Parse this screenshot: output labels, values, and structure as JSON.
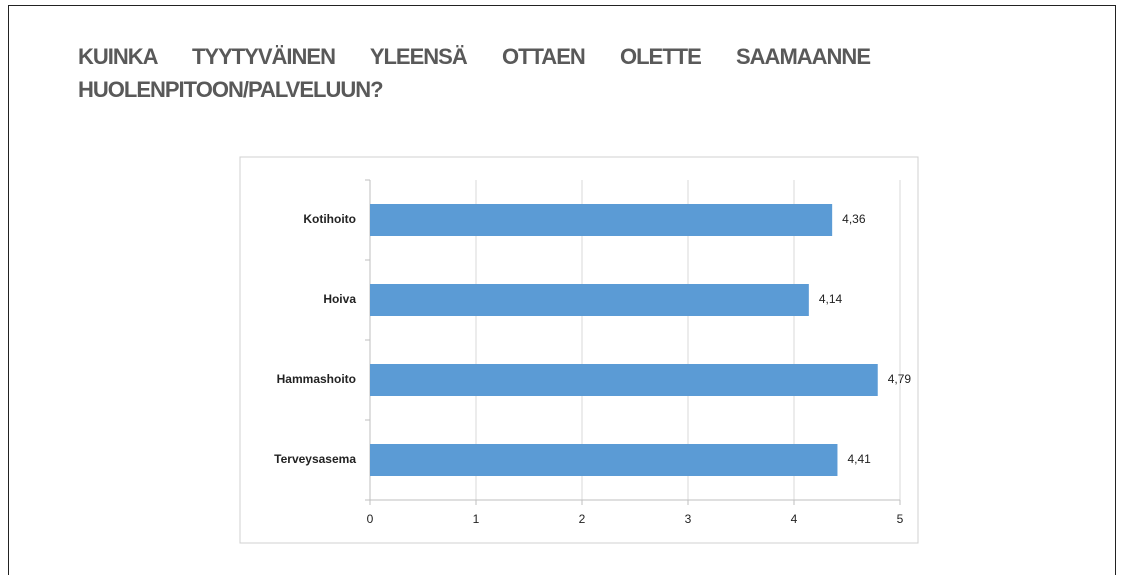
{
  "chart_data": {
    "type": "bar",
    "orientation": "horizontal",
    "title": "KUINKA TYYTYVÄINEN YLEENSÄ OTTAEN OLETTE SAAMAANNE HUOLENPITOON/PALVELUUN?",
    "categories": [
      "Kotihoito",
      "Hoiva",
      "Hammashoito",
      "Terveysasema"
    ],
    "values": [
      4.36,
      4.14,
      4.79,
      4.41
    ],
    "value_labels": [
      "4,36",
      "4,14",
      "4,79",
      "4,41"
    ],
    "color": "#5b9bd5",
    "xlim": [
      0,
      5
    ],
    "xticks": [
      0,
      1,
      2,
      3,
      4,
      5
    ],
    "grid": true
  }
}
